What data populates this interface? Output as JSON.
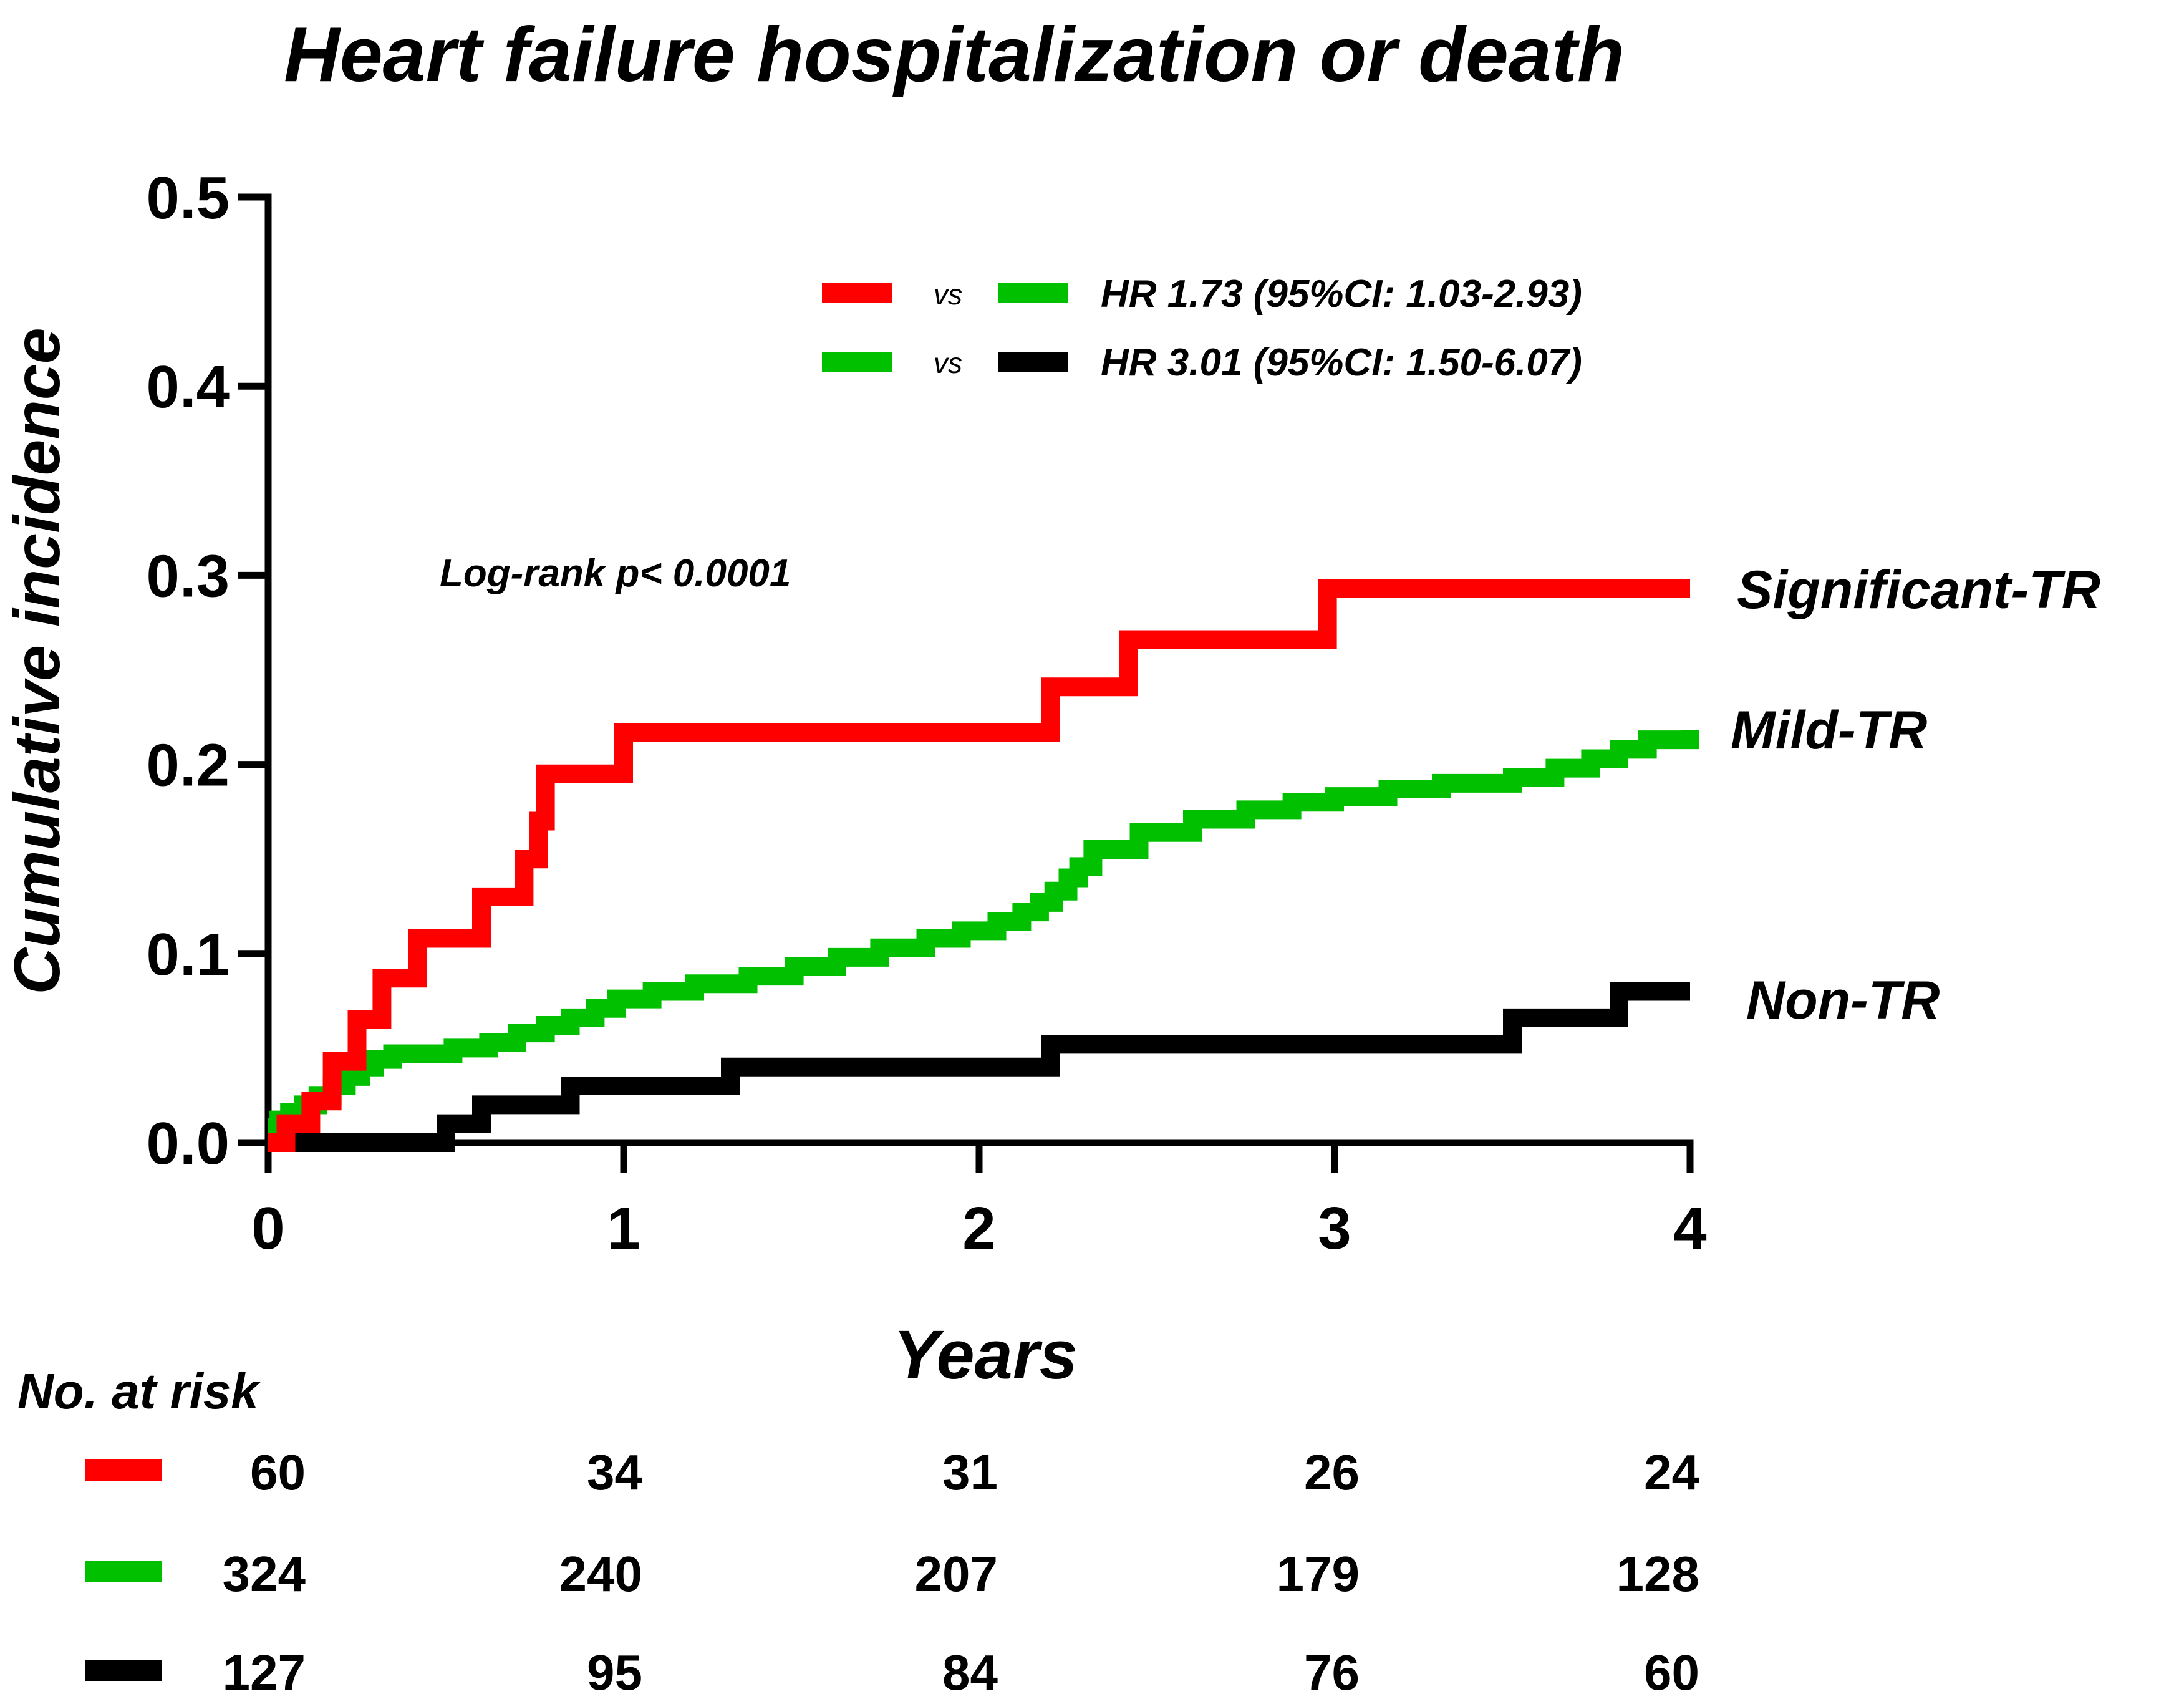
{
  "chart_data": {
    "type": "line",
    "step": true,
    "title": "Heart failure hospitalization or death",
    "xlabel": "Years",
    "ylabel": "Cumulative incidence",
    "xlim": [
      0,
      4
    ],
    "ylim": [
      0,
      0.5
    ],
    "xticks": [
      0,
      1,
      2,
      3,
      4
    ],
    "yticks": [
      0.0,
      0.1,
      0.2,
      0.3,
      0.4,
      0.5
    ],
    "xtick_labels": [
      "0",
      "1",
      "2",
      "3",
      "4"
    ],
    "ytick_labels": [
      "0.0",
      "0.1",
      "0.2",
      "0.3",
      "0.4",
      "0.5"
    ],
    "grid": false,
    "series": [
      {
        "name": "Significant-TR",
        "color": "#FF0000",
        "x": [
          0,
          0.05,
          0.12,
          0.18,
          0.25,
          0.32,
          0.42,
          0.6,
          0.72,
          0.76,
          0.78,
          1.0,
          2.2,
          2.42,
          2.98,
          4.0
        ],
        "y": [
          0,
          0.01,
          0.022,
          0.043,
          0.065,
          0.087,
          0.108,
          0.13,
          0.15,
          0.17,
          0.195,
          0.217,
          0.241,
          0.266,
          0.293,
          0.293
        ]
      },
      {
        "name": "Mild-TR",
        "color": "#00C000",
        "x": [
          0,
          0.03,
          0.06,
          0.1,
          0.14,
          0.18,
          0.22,
          0.26,
          0.3,
          0.35,
          0.42,
          0.52,
          0.62,
          0.7,
          0.78,
          0.85,
          0.92,
          0.98,
          1.08,
          1.2,
          1.35,
          1.48,
          1.6,
          1.72,
          1.85,
          1.95,
          2.05,
          2.12,
          2.17,
          2.21,
          2.25,
          2.28,
          2.32,
          2.45,
          2.6,
          2.75,
          2.88,
          3.0,
          3.15,
          3.3,
          3.5,
          3.62,
          3.72,
          3.8,
          3.88,
          4.0
        ],
        "y": [
          0.008,
          0.012,
          0.016,
          0.02,
          0.025,
          0.03,
          0.035,
          0.04,
          0.044,
          0.047,
          0.047,
          0.05,
          0.053,
          0.058,
          0.062,
          0.066,
          0.071,
          0.076,
          0.08,
          0.084,
          0.088,
          0.093,
          0.098,
          0.103,
          0.108,
          0.112,
          0.117,
          0.122,
          0.127,
          0.133,
          0.14,
          0.146,
          0.155,
          0.164,
          0.171,
          0.176,
          0.18,
          0.183,
          0.187,
          0.19,
          0.193,
          0.198,
          0.203,
          0.208,
          0.213,
          0.218
        ]
      },
      {
        "name": "Non-TR",
        "color": "#000000",
        "x": [
          0,
          0.5,
          0.6,
          0.85,
          1.3,
          2.2,
          3.5,
          3.8,
          4.0
        ],
        "y": [
          0,
          0.01,
          0.02,
          0.03,
          0.04,
          0.052,
          0.066,
          0.08,
          0.08
        ]
      }
    ],
    "legend": [
      {
        "color_a": "#FF0000",
        "vs": "vs",
        "color_b": "#00C000",
        "text": "HR 1.73 (95%CI: 1.03-2.93)"
      },
      {
        "color_a": "#00C000",
        "vs": "vs",
        "color_b": "#000000",
        "text": "HR 3.01 (95%CI: 1.50-6.07)"
      }
    ],
    "annotations": [
      "Log-rank p< 0.0001"
    ],
    "risk_table": {
      "header": "No. at risk",
      "rows": [
        {
          "color": "#FF0000",
          "values": [
            "60",
            "34",
            "31",
            "26",
            "24"
          ]
        },
        {
          "color": "#00C000",
          "values": [
            "324",
            "240",
            "207",
            "179",
            "128"
          ]
        },
        {
          "color": "#000000",
          "values": [
            "127",
            "95",
            "84",
            "76",
            "60"
          ]
        }
      ]
    }
  }
}
